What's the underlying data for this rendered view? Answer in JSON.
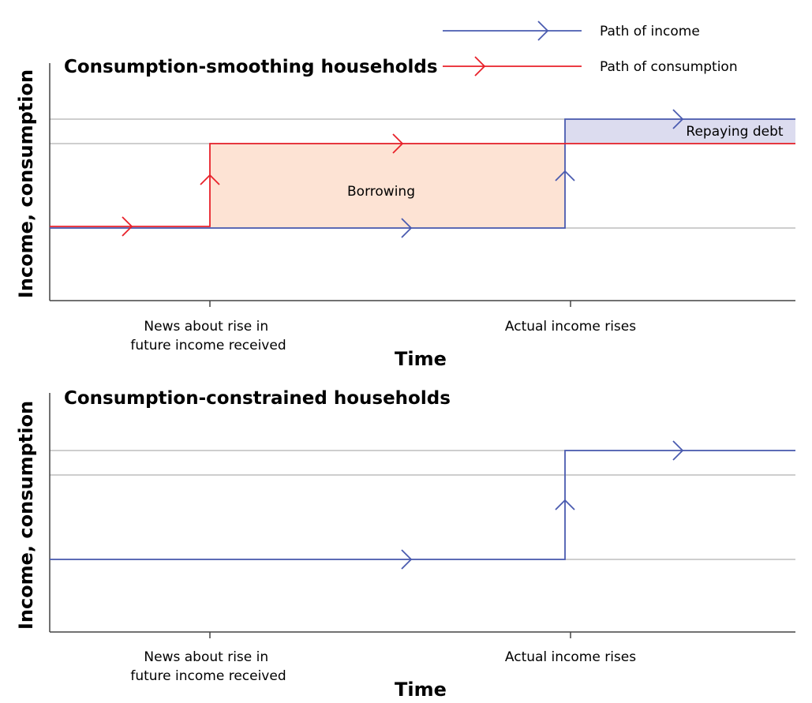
{
  "legend": {
    "income_label": "Path of income",
    "consumption_label": "Path of consumption"
  },
  "colors": {
    "income": "#4a5bb0",
    "consumption": "#e8212a",
    "borrowing_fill": "#fde3d4",
    "repaying_fill": "#dcdcef",
    "grid": "#bdbdbd"
  },
  "chart_data": [
    {
      "type": "line",
      "title": "Consumption-smoothing households",
      "xlabel": "Time",
      "ylabel": "Income, consumption",
      "x_ticks": [
        "News about rise in\nfuture income received",
        "Actual income rises"
      ],
      "y_levels": {
        "low": 1,
        "mid": 2,
        "high": 2.3
      },
      "series": [
        {
          "name": "Path of income",
          "steps": [
            {
              "from": "start",
              "level": "low"
            },
            {
              "from": "Actual income rises",
              "level": "high"
            }
          ]
        },
        {
          "name": "Path of consumption",
          "steps": [
            {
              "from": "start",
              "level": "low"
            },
            {
              "from": "News about rise in future income received",
              "level": "mid"
            }
          ]
        }
      ],
      "annotations": [
        "Borrowing",
        "Repaying debt"
      ]
    },
    {
      "type": "line",
      "title": "Consumption-constrained households",
      "xlabel": "Time",
      "ylabel": "Income, consumption",
      "x_ticks": [
        "News about rise in\nfuture income received",
        "Actual income rises"
      ],
      "y_levels": {
        "low": 1,
        "mid": 2,
        "high": 2.3
      },
      "series": [
        {
          "name": "Path of income",
          "steps": [
            {
              "from": "start",
              "level": "low"
            },
            {
              "from": "Actual income rises",
              "level": "high"
            }
          ]
        }
      ],
      "annotations": []
    }
  ]
}
